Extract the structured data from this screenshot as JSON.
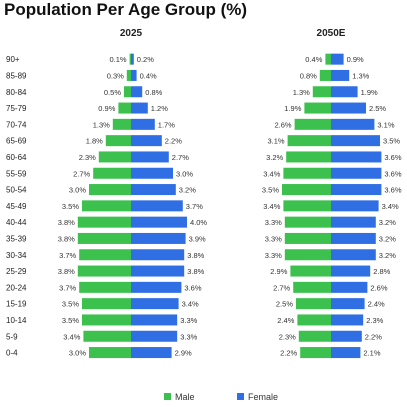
{
  "title": "Population Per Age Group (%)",
  "colors": {
    "male": "#3cc04e",
    "female": "#2f6fe3"
  },
  "chart_data": {
    "type": "bar",
    "subtype": "population-pyramid",
    "categories": [
      "90+",
      "85-89",
      "80-84",
      "75-79",
      "70-74",
      "65-69",
      "60-64",
      "55-59",
      "50-54",
      "45-49",
      "40-44",
      "35-39",
      "30-34",
      "25-29",
      "20-24",
      "15-19",
      "10-14",
      "5-9",
      "0-4"
    ],
    "legend": {
      "position": "bottom",
      "entries": [
        "Male",
        "Female"
      ]
    },
    "panels": [
      {
        "title": "2025",
        "series": [
          {
            "name": "Male",
            "values": [
              0.1,
              0.3,
              0.5,
              0.9,
              1.3,
              1.8,
              2.3,
              2.7,
              3.0,
              3.5,
              3.8,
              3.8,
              3.7,
              3.8,
              3.7,
              3.5,
              3.5,
              3.4,
              3.0
            ]
          },
          {
            "name": "Female",
            "values": [
              0.2,
              0.4,
              0.8,
              1.2,
              1.7,
              2.2,
              2.7,
              3.0,
              3.2,
              3.7,
              4.0,
              3.9,
              3.8,
              3.8,
              3.6,
              3.4,
              3.3,
              3.3,
              2.9
            ]
          }
        ]
      },
      {
        "title": "2050E",
        "series": [
          {
            "name": "Male",
            "values": [
              0.4,
              0.8,
              1.3,
              1.9,
              2.6,
              3.1,
              3.2,
              3.4,
              3.5,
              3.4,
              3.3,
              3.3,
              3.3,
              2.9,
              2.7,
              2.5,
              2.4,
              2.3,
              2.2
            ]
          },
          {
            "name": "Female",
            "values": [
              0.9,
              1.3,
              1.9,
              2.5,
              3.1,
              3.5,
              3.6,
              3.6,
              3.6,
              3.4,
              3.2,
              3.2,
              3.2,
              2.8,
              2.6,
              2.4,
              2.3,
              2.2,
              2.1
            ]
          }
        ]
      }
    ]
  }
}
